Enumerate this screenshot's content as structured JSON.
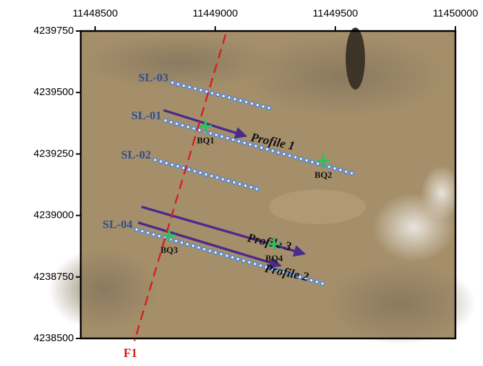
{
  "chart_data": {
    "type": "map",
    "xlim": [
      11448440,
      11450000
    ],
    "ylim": [
      4238500,
      4239750
    ],
    "xticks": [
      11448500,
      11449000,
      11449500,
      11450000
    ],
    "yticks": [
      4238500,
      4238750,
      4239000,
      4239250,
      4239500,
      4239750
    ],
    "survey_lines": [
      {
        "name": "SL-03",
        "x": [
          11448822,
          11449239
        ],
        "y": [
          4239540,
          4239433
        ]
      },
      {
        "name": "SL-01",
        "x": [
          11448793,
          11449575
        ],
        "y": [
          4239386,
          4239170
        ]
      },
      {
        "name": "SL-02",
        "x": [
          11448750,
          11449184
        ],
        "y": [
          4239226,
          4239105
        ]
      },
      {
        "name": "SL-04",
        "x": [
          11448673,
          11449454
        ],
        "y": [
          4238943,
          4238721
        ]
      }
    ],
    "fault": {
      "name": "F1",
      "color": "#d42020",
      "x": [
        11449043,
        11448664
      ],
      "y": [
        4239736,
        4238490
      ]
    },
    "profiles": [
      {
        "name": "Profile 1",
        "x": [
          11448785,
          11449124
        ],
        "y": [
          4239428,
          4239324
        ]
      },
      {
        "name": "Profile 3",
        "x": [
          11448693,
          11449368
        ],
        "y": [
          4239035,
          4238845
        ]
      },
      {
        "name": "Profile 2",
        "x": [
          11448679,
          11449268
        ],
        "y": [
          4238971,
          4238797
        ]
      }
    ],
    "stations": [
      {
        "name": "BQ1",
        "x": 11448960,
        "y": 4239363
      },
      {
        "name": "BQ2",
        "x": 11449450,
        "y": 4239223
      },
      {
        "name": "BQ3",
        "x": 11448808,
        "y": 4238918
      },
      {
        "name": "BQ4",
        "x": 11449245,
        "y": 4238884
      }
    ]
  }
}
